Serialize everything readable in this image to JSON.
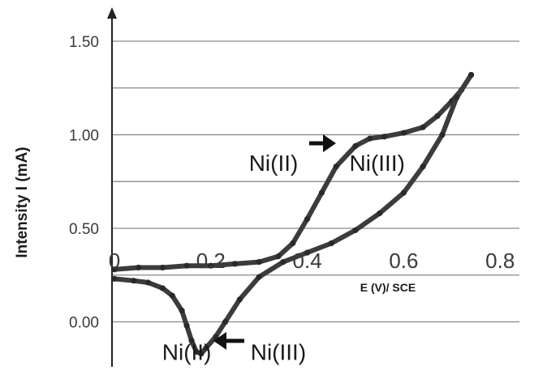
{
  "chart_data": {
    "type": "line",
    "title": "",
    "xlabel": "E (V)/ SCE",
    "ylabel": "Intensity  I (mA)",
    "xlim": [
      -0.005,
      0.84
    ],
    "ylim": [
      -0.24,
      1.56
    ],
    "x_ticks": [
      0,
      0.2,
      0.4,
      0.6,
      0.8
    ],
    "x_tick_labels": [
      "0",
      "0.2",
      "0.4",
      "0.6",
      "0.8"
    ],
    "y_ticks": [
      0,
      0.5,
      1.0,
      1.5
    ],
    "y_tick_labels": [
      "0.00",
      "0.50",
      "1.00",
      "1.50"
    ],
    "grid": "horizontal",
    "legend": "none",
    "series": [
      {
        "x": [
          0,
          0.05,
          0.1,
          0.15,
          0.2,
          0.25,
          0.3,
          0.34,
          0.37,
          0.4,
          0.43,
          0.46,
          0.5,
          0.53,
          0.56,
          0.6,
          0.64,
          0.67,
          0.7,
          0.72,
          0.74
        ],
        "y": [
          0.28,
          0.29,
          0.29,
          0.3,
          0.3,
          0.31,
          0.32,
          0.35,
          0.42,
          0.55,
          0.69,
          0.83,
          0.94,
          0.98,
          0.99,
          1.01,
          1.04,
          1.1,
          1.18,
          1.24,
          1.32
        ]
      },
      {
        "x": [
          0.74,
          0.71,
          0.68,
          0.64,
          0.6,
          0.55,
          0.5,
          0.45,
          0.4,
          0.35,
          0.3,
          0.26,
          0.23,
          0.21,
          0.19,
          0.18,
          0.17,
          0.16,
          0.15,
          0.14,
          0.12,
          0.1,
          0.07,
          0.04,
          0
        ],
        "y": [
          1.32,
          1.2,
          1.0,
          0.83,
          0.69,
          0.58,
          0.49,
          0.42,
          0.37,
          0.32,
          0.24,
          0.12,
          0.0,
          -0.08,
          -0.14,
          -0.17,
          -0.16,
          -0.1,
          -0.02,
          0.06,
          0.14,
          0.18,
          0.21,
          0.22,
          0.23
        ]
      }
    ],
    "annotations": [
      {
        "text": "Ni(II)",
        "x": 0.33,
        "y": 0.85
      },
      {
        "text": "Ni(III)",
        "x": 0.545,
        "y": 0.85
      },
      {
        "text": "Ni(II)",
        "x": 0.15,
        "y": -0.16
      },
      {
        "text": "Ni(III)",
        "x": 0.34,
        "y": -0.16
      }
    ],
    "color": "#3c3c3c"
  }
}
